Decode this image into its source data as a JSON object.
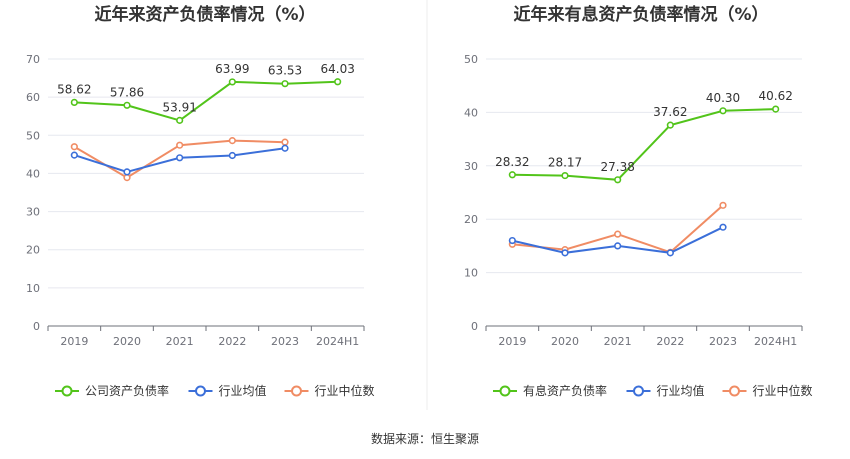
{
  "footer": {
    "source": "数据来源：恒生聚源"
  },
  "chart_data": [
    {
      "type": "line",
      "title": "近年来资产负债率情况（%）",
      "categories": [
        "2019",
        "2020",
        "2021",
        "2022",
        "2023",
        "2024H1"
      ],
      "ylim": [
        0,
        70
      ],
      "yticks": [
        0,
        10,
        20,
        30,
        40,
        50,
        60,
        70
      ],
      "grid": true,
      "legend_position": "bottom",
      "series": [
        {
          "name": "公司资产负债率",
          "color": "#52c41a",
          "show_labels": true,
          "values": [
            58.62,
            57.86,
            53.91,
            63.99,
            63.53,
            64.03
          ]
        },
        {
          "name": "行业均值",
          "color": "#3b6fd9",
          "show_labels": false,
          "values": [
            44.8,
            40.4,
            44.1,
            44.7,
            46.6,
            null
          ]
        },
        {
          "name": "行业中位数",
          "color": "#f08c64",
          "show_labels": false,
          "values": [
            47.0,
            38.9,
            47.4,
            48.6,
            48.2,
            null
          ]
        }
      ]
    },
    {
      "type": "line",
      "title": "近年来有息资产负债率情况（%）",
      "categories": [
        "2019",
        "2020",
        "2021",
        "2022",
        "2023",
        "2024H1"
      ],
      "ylim": [
        0,
        50
      ],
      "yticks": [
        0,
        10,
        20,
        30,
        40,
        50
      ],
      "grid": true,
      "legend_position": "bottom",
      "series": [
        {
          "name": "有息资产负债率",
          "color": "#52c41a",
          "show_labels": true,
          "values": [
            28.32,
            28.17,
            27.38,
            37.62,
            40.3,
            40.62
          ]
        },
        {
          "name": "行业均值",
          "color": "#3b6fd9",
          "show_labels": false,
          "values": [
            16.0,
            13.7,
            15.0,
            13.7,
            18.5,
            null
          ]
        },
        {
          "name": "行业中位数",
          "color": "#f08c64",
          "show_labels": false,
          "values": [
            15.3,
            14.3,
            17.2,
            13.8,
            22.6,
            null
          ]
        }
      ]
    }
  ]
}
